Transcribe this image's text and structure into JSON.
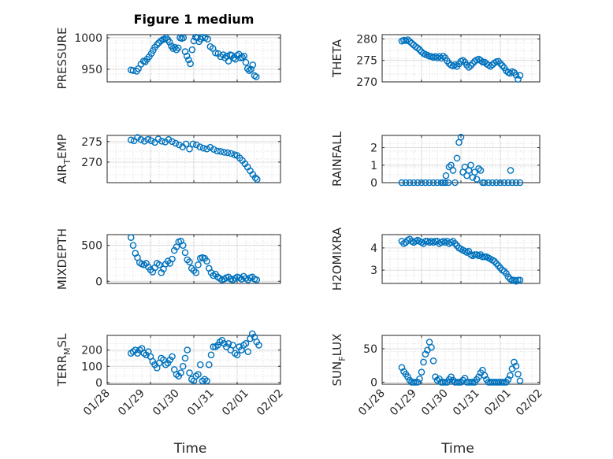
{
  "figure": {
    "title": "Figure 1 medium",
    "marker_color": "#0072BD"
  },
  "chart_data": [
    {
      "type": "scatter",
      "ylabel": "PRESSURE",
      "title": "Figure 1 medium",
      "ylim": [
        930,
        1005
      ],
      "yticks": [
        950,
        1000
      ],
      "xlim": [
        0,
        4
      ],
      "x_ticklabels": [],
      "grid": true,
      "x": [
        0.55,
        0.6,
        0.68,
        0.72,
        0.78,
        0.84,
        0.88,
        0.92,
        0.97,
        1.02,
        1.06,
        1.1,
        1.15,
        1.19,
        1.24,
        1.28,
        1.32,
        1.36,
        1.4,
        1.44,
        1.48,
        1.52,
        1.56,
        1.6,
        1.64,
        1.68,
        1.72,
        1.76,
        1.8,
        1.84,
        1.88,
        1.92,
        1.96,
        2.0,
        2.04,
        2.08,
        2.12,
        2.16,
        2.2,
        2.26,
        2.32,
        2.38,
        2.44,
        2.5,
        2.56,
        2.62,
        2.68,
        2.72,
        2.76,
        2.8,
        2.84,
        2.88,
        2.92,
        2.96,
        3.0,
        3.04,
        3.08,
        3.12,
        3.16,
        3.2,
        3.24,
        3.28,
        3.32,
        3.36,
        3.4,
        3.44
      ],
      "values": [
        949,
        948,
        947,
        951,
        958,
        963,
        962,
        966,
        970,
        975,
        980,
        985,
        989,
        992,
        995,
        997,
        998,
        1000,
        997,
        993,
        987,
        983,
        985,
        981,
        984,
        1000,
        999,
        1000,
        978,
        971,
        965,
        959,
        981,
        995,
        1001,
        1000,
        994,
        998,
        1001,
        1000,
        998,
        986,
        983,
        976,
        975,
        970,
        973,
        968,
        971,
        963,
        973,
        972,
        968,
        966,
        972,
        974,
        968,
        969,
        971,
        961,
        951,
        948,
        950,
        957,
        940,
        938
      ]
    },
    {
      "type": "scatter",
      "ylabel": "THETA",
      "ylim": [
        270,
        281
      ],
      "yticks": [
        270,
        275,
        280
      ],
      "xlim": [
        0,
        4
      ],
      "x_ticklabels": [],
      "grid": true,
      "x": [
        0.5,
        0.55,
        0.6,
        0.65,
        0.7,
        0.75,
        0.8,
        0.85,
        0.9,
        0.95,
        1.0,
        1.05,
        1.1,
        1.15,
        1.2,
        1.25,
        1.3,
        1.35,
        1.4,
        1.45,
        1.5,
        1.55,
        1.6,
        1.65,
        1.7,
        1.75,
        1.8,
        1.85,
        1.9,
        1.95,
        2.0,
        2.05,
        2.1,
        2.15,
        2.2,
        2.25,
        2.3,
        2.35,
        2.4,
        2.45,
        2.5,
        2.55,
        2.6,
        2.65,
        2.7,
        2.75,
        2.8,
        2.85,
        2.9,
        2.95,
        3.0,
        3.05,
        3.1,
        3.15,
        3.2,
        3.25,
        3.3,
        3.35,
        3.4,
        3.45,
        3.5
      ],
      "values": [
        279.5,
        279.7,
        279.6,
        279.8,
        279.4,
        279.0,
        278.6,
        278.2,
        277.9,
        277.5,
        277.0,
        276.6,
        276.4,
        276.2,
        276.0,
        275.9,
        275.7,
        275.9,
        275.6,
        275.9,
        275.5,
        276.0,
        275.6,
        274.9,
        274.3,
        273.9,
        273.7,
        274.0,
        273.6,
        274.2,
        274.8,
        275.0,
        274.6,
        273.9,
        273.4,
        273.8,
        274.3,
        274.8,
        275.1,
        275.3,
        275.0,
        274.6,
        274.6,
        274.2,
        273.9,
        273.6,
        274.0,
        274.4,
        274.7,
        274.8,
        274.3,
        273.8,
        273.3,
        272.6,
        272.2,
        272.0,
        272.4,
        272.2,
        271.6,
        270.6,
        271.5
      ]
    },
    {
      "type": "scatter",
      "ylabel_main": "AIR",
      "ylabel_sub": "T",
      "ylabel_tail": "EMP",
      "ylim": [
        265,
        276.5
      ],
      "yticks": [
        270,
        275
      ],
      "xlim": [
        0,
        4
      ],
      "x_ticklabels": [],
      "grid": true,
      "x": [
        0.55,
        0.62,
        0.7,
        0.78,
        0.86,
        0.94,
        1.02,
        1.1,
        1.18,
        1.26,
        1.34,
        1.42,
        1.5,
        1.58,
        1.66,
        1.74,
        1.82,
        1.9,
        1.98,
        2.06,
        2.14,
        2.22,
        2.3,
        2.38,
        2.46,
        2.54,
        2.62,
        2.7,
        2.78,
        2.86,
        2.94,
        3.0,
        3.06,
        3.12,
        3.18,
        3.24,
        3.3,
        3.36,
        3.42,
        3.46
      ],
      "values": [
        275.4,
        275.2,
        276.0,
        275.5,
        275.1,
        275.5,
        275.2,
        274.8,
        275.6,
        275.1,
        274.9,
        275.5,
        275.0,
        274.6,
        274.2,
        273.7,
        274.4,
        273.2,
        274.4,
        274.2,
        273.7,
        273.4,
        273.2,
        273.6,
        273.1,
        272.7,
        272.6,
        272.4,
        272.3,
        272.1,
        271.8,
        271.6,
        271.0,
        270.4,
        269.6,
        268.8,
        267.9,
        267.0,
        266.2,
        265.8
      ]
    },
    {
      "type": "scatter",
      "ylabel": "RAINFALL",
      "ylim": [
        0,
        2.7
      ],
      "yticks": [
        0,
        1,
        2
      ],
      "xlim": [
        0,
        4
      ],
      "x_ticklabels": [],
      "grid": true,
      "x": [
        0.5,
        0.6,
        0.7,
        0.8,
        0.9,
        1.0,
        1.1,
        1.2,
        1.3,
        1.4,
        1.5,
        1.6,
        1.7,
        1.75,
        1.8,
        1.85,
        1.9,
        1.95,
        2.0,
        2.05,
        2.1,
        2.15,
        2.2,
        2.25,
        2.3,
        2.35,
        2.4,
        2.45,
        2.5,
        2.55,
        2.6,
        2.7,
        2.8,
        2.9,
        3.0,
        3.1,
        3.2,
        3.26,
        3.3,
        3.4,
        3.5,
        1.55,
        1.62,
        1.68
      ],
      "values": [
        0,
        0,
        0,
        0,
        0,
        0,
        0,
        0,
        0,
        0,
        0,
        0,
        0.9,
        1.0,
        0.7,
        0,
        1.4,
        2.3,
        2.6,
        0.6,
        0.9,
        0.4,
        0.7,
        1.0,
        0.3,
        0.6,
        0.2,
        0.8,
        0.7,
        0,
        0,
        0,
        0,
        0,
        0,
        0,
        0,
        0.7,
        0,
        0,
        0,
        0,
        0.4,
        0
      ]
    },
    {
      "type": "scatter",
      "ylabel": "MIXDEPTH",
      "ylim": [
        -30,
        650
      ],
      "yticks": [
        0,
        500
      ],
      "xlim": [
        0,
        4
      ],
      "x_ticklabels": [],
      "grid": true,
      "x": [
        0.55,
        0.6,
        0.65,
        0.7,
        0.75,
        0.8,
        0.85,
        0.9,
        0.95,
        1.0,
        1.05,
        1.1,
        1.15,
        1.2,
        1.25,
        1.3,
        1.35,
        1.4,
        1.45,
        1.5,
        1.55,
        1.6,
        1.65,
        1.7,
        1.75,
        1.8,
        1.85,
        1.9,
        1.95,
        2.0,
        2.05,
        2.1,
        2.15,
        2.2,
        2.25,
        2.3,
        2.35,
        2.4,
        2.45,
        2.5,
        2.55,
        2.6,
        2.65,
        2.7,
        2.75,
        2.8,
        2.85,
        2.9,
        2.95,
        3.0,
        3.05,
        3.1,
        3.15,
        3.2,
        3.25,
        3.3,
        3.35,
        3.4,
        3.45
      ],
      "values": [
        610,
        500,
        390,
        330,
        260,
        240,
        230,
        250,
        200,
        160,
        130,
        190,
        250,
        230,
        120,
        170,
        240,
        280,
        250,
        310,
        430,
        480,
        550,
        560,
        500,
        400,
        300,
        270,
        180,
        150,
        120,
        230,
        320,
        330,
        320,
        280,
        180,
        120,
        80,
        100,
        60,
        40,
        20,
        30,
        50,
        60,
        30,
        20,
        40,
        60,
        50,
        30,
        70,
        40,
        20,
        50,
        60,
        30,
        20
      ]
    },
    {
      "type": "scatter",
      "ylabel": "H2OMIXRA",
      "ylim": [
        2.4,
        4.6
      ],
      "yticks": [
        3,
        4
      ],
      "xlim": [
        0,
        4
      ],
      "x_ticklabels": [],
      "grid": true,
      "x": [
        0.5,
        0.55,
        0.6,
        0.65,
        0.7,
        0.75,
        0.8,
        0.85,
        0.9,
        0.95,
        1.0,
        1.05,
        1.1,
        1.15,
        1.2,
        1.25,
        1.3,
        1.35,
        1.4,
        1.45,
        1.5,
        1.55,
        1.6,
        1.65,
        1.7,
        1.75,
        1.8,
        1.85,
        1.9,
        1.95,
        2.0,
        2.05,
        2.1,
        2.15,
        2.2,
        2.25,
        2.3,
        2.35,
        2.4,
        2.45,
        2.5,
        2.55,
        2.6,
        2.65,
        2.7,
        2.75,
        2.8,
        2.85,
        2.9,
        2.95,
        3.0,
        3.05,
        3.1,
        3.15,
        3.2,
        3.25,
        3.3,
        3.35,
        3.4,
        3.45,
        3.5
      ],
      "values": [
        4.3,
        4.2,
        4.25,
        4.35,
        4.4,
        4.3,
        4.25,
        4.3,
        4.35,
        4.3,
        4.25,
        4.2,
        4.3,
        4.3,
        4.25,
        4.3,
        4.25,
        4.3,
        4.3,
        4.2,
        4.25,
        4.3,
        4.25,
        4.3,
        4.2,
        4.25,
        4.3,
        4.2,
        4.1,
        4.0,
        3.95,
        3.9,
        3.85,
        3.8,
        3.85,
        3.7,
        3.65,
        3.7,
        3.7,
        3.65,
        3.7,
        3.6,
        3.6,
        3.6,
        3.55,
        3.5,
        3.45,
        3.4,
        3.3,
        3.2,
        3.1,
        3.0,
        2.95,
        2.85,
        2.7,
        2.6,
        2.55,
        2.55,
        2.5,
        2.55,
        2.55
      ]
    },
    {
      "type": "scatter",
      "ylabel_main": "TERR",
      "ylabel_sub": "M",
      "ylabel_tail": "SL",
      "ylim": [
        -10,
        290
      ],
      "yticks": [
        0,
        100,
        200
      ],
      "xlim": [
        0,
        4
      ],
      "x_ticklabels": [
        "01/28",
        "01/29",
        "01/30",
        "01/31",
        "02/01",
        "02/02"
      ],
      "xlabel": "Time",
      "grid": true,
      "x": [
        0.55,
        0.6,
        0.65,
        0.7,
        0.75,
        0.8,
        0.85,
        0.9,
        0.95,
        1.0,
        1.05,
        1.1,
        1.15,
        1.2,
        1.25,
        1.3,
        1.35,
        1.4,
        1.45,
        1.5,
        1.55,
        1.6,
        1.65,
        1.7,
        1.75,
        1.8,
        1.85,
        1.9,
        1.95,
        2.0,
        2.05,
        2.1,
        2.15,
        2.2,
        2.25,
        2.3,
        2.35,
        2.4,
        2.45,
        2.5,
        2.55,
        2.6,
        2.65,
        2.7,
        2.75,
        2.8,
        2.85,
        2.9,
        2.95,
        3.0,
        3.05,
        3.1,
        3.15,
        3.2,
        3.25,
        3.3,
        3.35,
        3.4,
        3.45,
        3.5
      ],
      "values": [
        180,
        190,
        200,
        180,
        200,
        210,
        180,
        170,
        190,
        160,
        130,
        110,
        90,
        120,
        150,
        140,
        110,
        120,
        140,
        160,
        80,
        50,
        40,
        60,
        100,
        150,
        200,
        60,
        20,
        10,
        40,
        50,
        110,
        10,
        20,
        10,
        110,
        170,
        220,
        220,
        230,
        250,
        260,
        240,
        220,
        240,
        200,
        230,
        180,
        170,
        220,
        200,
        230,
        240,
        190,
        270,
        300,
        280,
        250,
        230
      ]
    },
    {
      "type": "scatter",
      "ylabel_main": "SUN",
      "ylabel_sub": "F",
      "ylabel_tail": "LUX",
      "ylim": [
        -3,
        70
      ],
      "yticks": [
        0,
        50
      ],
      "xlim": [
        0,
        4
      ],
      "x_ticklabels": [
        "01/28",
        "01/29",
        "01/30",
        "01/31",
        "02/01",
        "02/02"
      ],
      "xlabel": "Time",
      "grid": true,
      "x": [
        0.5,
        0.55,
        0.6,
        0.65,
        0.7,
        0.75,
        0.8,
        0.85,
        0.9,
        0.95,
        1.0,
        1.05,
        1.1,
        1.15,
        1.2,
        1.25,
        1.3,
        1.35,
        1.4,
        1.45,
        1.5,
        1.55,
        1.6,
        1.65,
        1.7,
        1.75,
        1.8,
        1.85,
        1.9,
        1.95,
        2.0,
        2.05,
        2.1,
        2.15,
        2.2,
        2.25,
        2.3,
        2.35,
        2.4,
        2.45,
        2.5,
        2.55,
        2.6,
        2.65,
        2.7,
        2.75,
        2.8,
        2.85,
        2.9,
        2.95,
        3.0,
        3.05,
        3.1,
        3.15,
        3.2,
        3.25,
        3.3,
        3.35,
        3.4,
        3.45,
        3.5
      ],
      "values": [
        22,
        16,
        12,
        8,
        3,
        0,
        0,
        0,
        0,
        5,
        15,
        30,
        42,
        48,
        60,
        52,
        32,
        8,
        3,
        5,
        0,
        0,
        0,
        0,
        4,
        8,
        3,
        0,
        0,
        0,
        0,
        3,
        6,
        0,
        0,
        0,
        0,
        0,
        4,
        8,
        14,
        18,
        10,
        4,
        0,
        0,
        0,
        0,
        0,
        0,
        0,
        0,
        0,
        0,
        4,
        10,
        20,
        30,
        24,
        12,
        2
      ]
    }
  ]
}
